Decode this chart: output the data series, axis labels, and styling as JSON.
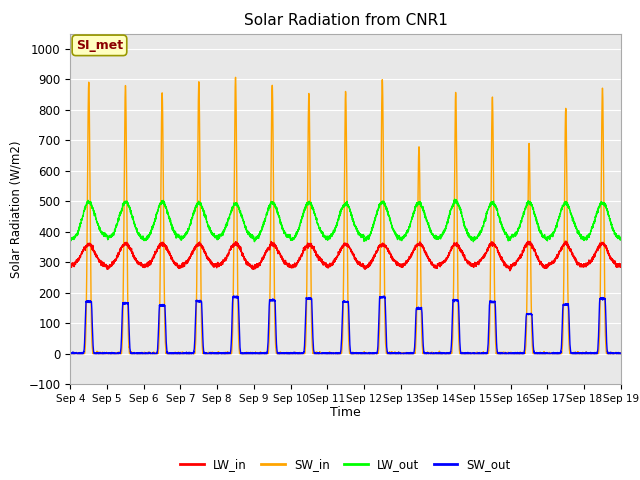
{
  "title": "Solar Radiation from CNR1",
  "xlabel": "Time",
  "ylabel": "Solar Radiation (W/m2)",
  "ylim": [
    -100,
    1050
  ],
  "yticks": [
    -100,
    0,
    100,
    200,
    300,
    400,
    500,
    600,
    700,
    800,
    900,
    1000
  ],
  "x_labels": [
    "Sep 4",
    "Sep 5",
    "Sep 6",
    "Sep 7",
    "Sep 8",
    "Sep 9",
    "Sep 10",
    "Sep 11",
    "Sep 12",
    "Sep 13",
    "Sep 14",
    "Sep 15",
    "Sep 16",
    "Sep 17",
    "Sep 18",
    "Sep 19"
  ],
  "annotation_text": "SI_met",
  "annotation_color": "#8B0000",
  "annotation_bg": "#FFFFC0",
  "colors": {
    "LW_in": "#FF0000",
    "SW_in": "#FFA500",
    "LW_out": "#00FF00",
    "SW_out": "#0000FF"
  },
  "background_color": "#FFFFFF",
  "grid_color": "#CCCCCC",
  "n_days": 15,
  "points_per_day": 288
}
